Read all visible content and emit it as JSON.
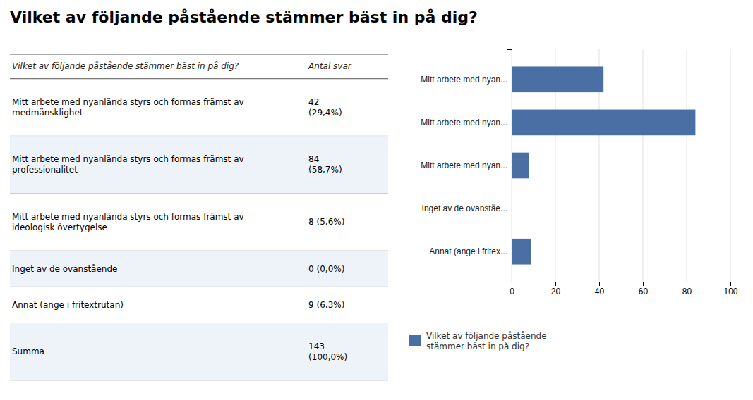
{
  "chart_data": {
    "type": "bar",
    "orientation": "horizontal",
    "title": "Vilket av följande påstående stämmer bäst in på dig?",
    "categories": [
      "Mitt arbete med nyan...",
      "Mitt arbete med nyan...",
      "Mitt arbete med nyan...",
      "Inget av de ovanståe...",
      "Annat (ange i fritex..."
    ],
    "series": [
      {
        "name": "Vilket av följande påstående\nstämmer bäst in på dig?",
        "color": "#4a6fa5",
        "values": [
          42,
          84,
          8,
          0,
          9
        ]
      }
    ],
    "xlim": [
      0,
      100
    ],
    "xticks": [
      0,
      20,
      40,
      60,
      80,
      100
    ],
    "grid": true,
    "legend": "bottom left",
    "table": {
      "columns": [
        "Vilket av följande påstående stämmer bäst in på dig?",
        "Antal svar"
      ],
      "rows": [
        [
          "Mitt arbete med nyanlända styrs och formas främst av\nmedmänsklighet",
          "42\n(29,4%)"
        ],
        [
          "Mitt arbete med nyanlända styrs och formas främst av\nprofessionalitet",
          "84\n(58,7%)"
        ],
        [
          "Mitt arbete med nyanlända styrs och formas främst av\nideologisk övertygelse",
          "8 (5,6%)"
        ],
        [
          "Inget av de ovanstående",
          "0 (0,0%)"
        ],
        [
          "Annat (ange i fritextrutan)",
          "9 (6,3%)"
        ],
        [
          "Summa",
          "143\n(100,0%)"
        ]
      ]
    }
  }
}
